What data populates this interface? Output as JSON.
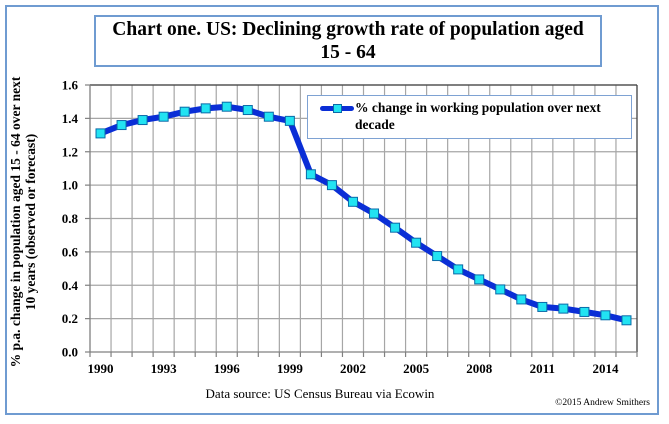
{
  "chart_data": {
    "type": "line",
    "title": "Chart one. US: Declining growth rate of population aged 15 - 64",
    "title_lines": [
      "Chart one. US: Declining growth rate of population aged",
      "15 - 64"
    ],
    "xlabel": "",
    "ylabel": "% p.a. change in population aged 15 - 64 over next 10 years (observed or forecast)",
    "ylabel_lines": [
      "% p.a. change in population aged 15 - 64 over next",
      "10 years (observed or forecast)"
    ],
    "ylim": [
      0.0,
      1.6
    ],
    "yticks": [
      "0.0",
      "0.2",
      "0.4",
      "0.6",
      "0.8",
      "1.0",
      "1.2",
      "1.4",
      "1.6"
    ],
    "xlim": [
      1990,
      2015
    ],
    "xticks": [
      "1990",
      "1993",
      "1996",
      "1999",
      "2002",
      "2005",
      "2008",
      "2011",
      "2014"
    ],
    "grid": true,
    "legend_position": "top-right",
    "x": [
      1990,
      1991,
      1992,
      1993,
      1994,
      1995,
      1996,
      1997,
      1998,
      1999,
      2000,
      2001,
      2002,
      2003,
      2004,
      2005,
      2006,
      2007,
      2008,
      2009,
      2010,
      2011,
      2012,
      2013,
      2014,
      2015
    ],
    "series": [
      {
        "name": "% change in working population over next decade",
        "color": "#0a2ed6",
        "marker_color": "#22e3f2",
        "values": [
          1.31,
          1.36,
          1.39,
          1.41,
          1.44,
          1.46,
          1.47,
          1.45,
          1.41,
          1.385,
          1.065,
          1.0,
          0.9,
          0.83,
          0.745,
          0.655,
          0.575,
          0.495,
          0.435,
          0.375,
          0.315,
          0.27,
          0.26,
          0.24,
          0.22,
          0.19
        ]
      }
    ],
    "source": "Data source: US Census Bureau via Ecowin",
    "copyright": "©2015 Andrew Smithers"
  }
}
